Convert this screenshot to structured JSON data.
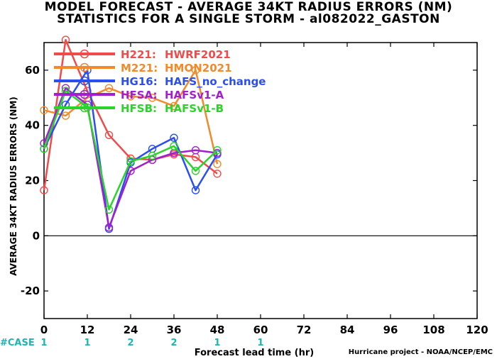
{
  "title_line1": "MODEL FORECAST - AVERAGE 34KT RADIUS ERRORS (NM)",
  "title_line2": "STATISTICS FOR A SINGLE STORM - al082022_GASTON",
  "credit": "Hurricane project - NOAA/NCEP/EMC",
  "case_label": "#CASE",
  "colors": {
    "case": "#1fb4b4",
    "zero_line": "#000000"
  },
  "chart_data": {
    "type": "line",
    "title": "MODEL FORECAST - AVERAGE 34KT RADIUS ERRORS (NM)",
    "subtitle": "STATISTICS FOR A SINGLE STORM - al082022_GASTON",
    "xlabel": "Forecast lead time (hr)",
    "ylabel": "AVERAGE 34KT RADIUS ERRORS (NM)",
    "xlim": [
      0,
      120
    ],
    "ylim": [
      -30,
      70
    ],
    "xticks": [
      0,
      12,
      24,
      36,
      48,
      60,
      72,
      84,
      96,
      108,
      120
    ],
    "yticks": [
      -20,
      0,
      20,
      40,
      60
    ],
    "legend_position": "top-left",
    "cases": [
      {
        "x": 0,
        "n": "1"
      },
      {
        "x": 12,
        "n": "1"
      },
      {
        "x": 24,
        "n": "2"
      },
      {
        "x": 36,
        "n": "2"
      },
      {
        "x": 48,
        "n": "1"
      },
      {
        "x": 60,
        "n": "1"
      }
    ],
    "series": [
      {
        "name": "H221:",
        "label": "HWRF2021",
        "color": "#f04b4b",
        "x": [
          0,
          6,
          12,
          18,
          24,
          30,
          36,
          42,
          48
        ],
        "y": [
          16.5,
          71,
          52.5,
          36.5,
          28,
          27.5,
          29.5,
          28.5,
          22.5
        ]
      },
      {
        "name": "M221:",
        "label": "HMON2021",
        "color": "#f08a2a",
        "x": [
          0,
          6,
          12,
          18,
          24,
          30,
          36,
          42,
          48
        ],
        "y": [
          45.5,
          43.5,
          50,
          53.5,
          50.5,
          50,
          47,
          60,
          26
        ]
      },
      {
        "name": "HG16:",
        "label": "HAFS_no_change",
        "color": "#2a4ef0",
        "x": [
          0,
          6,
          12,
          18,
          24,
          30,
          36,
          42,
          48
        ],
        "y": [
          31.5,
          47.5,
          60,
          2.5,
          26.5,
          31.5,
          35.5,
          16.5,
          29.5
        ]
      },
      {
        "name": "HFSA:",
        "label": "HAFSv1-A",
        "color": "#a020d0",
        "x": [
          0,
          6,
          12,
          18,
          24,
          30,
          36,
          42,
          48
        ],
        "y": [
          33.5,
          53.5,
          47.5,
          3,
          23.5,
          27.5,
          30,
          31,
          30
        ]
      },
      {
        "name": "HFSB:",
        "label": "HAFSv1-B",
        "color": "#2ad42a",
        "x": [
          0,
          6,
          12,
          18,
          24,
          30,
          36,
          42,
          48
        ],
        "y": [
          31.5,
          52.5,
          46.5,
          9.5,
          27,
          29,
          32.5,
          23.5,
          31
        ]
      }
    ]
  }
}
